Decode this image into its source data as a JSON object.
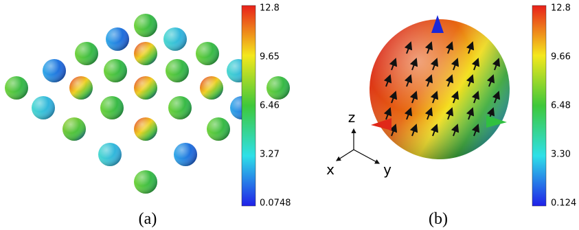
{
  "panels": [
    {
      "caption": "(a)",
      "colorbar": {
        "labels": [
          "12.8",
          "9.65",
          "6.46",
          "3.27",
          "0.0748"
        ]
      }
    },
    {
      "caption": "(b)",
      "colorbar": {
        "labels": [
          "12.8",
          "9.66",
          "6.48",
          "3.30",
          "0.124"
        ]
      },
      "axes": {
        "z": "z",
        "x": "x",
        "y": "y"
      }
    }
  ]
}
